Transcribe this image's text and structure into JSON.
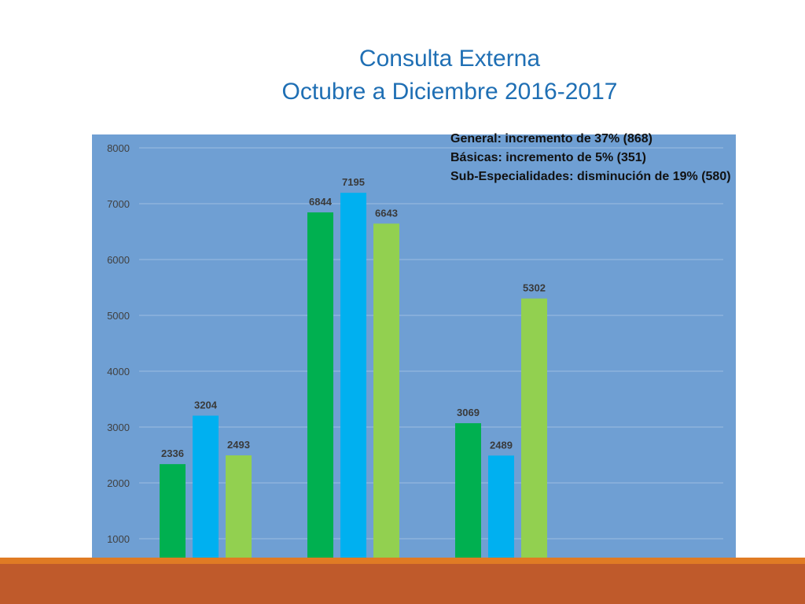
{
  "chart_data": {
    "type": "bar",
    "title_lines": [
      "Consulta Externa",
      "Octubre a Diciembre 2016-2017"
    ],
    "categories": [
      "",
      "",
      ""
    ],
    "series": [
      {
        "values": [
          2336,
          6844,
          3069
        ],
        "color": "#00b050"
      },
      {
        "values": [
          3204,
          7195,
          2489
        ],
        "color": "#00b0f0"
      },
      {
        "values": [
          2493,
          6643,
          5302
        ],
        "color": "#92d050"
      }
    ],
    "ylim": [
      600,
      8200
    ],
    "yticks": [
      1000,
      2000,
      3000,
      4000,
      5000,
      6000,
      7000,
      8000
    ],
    "grid": true,
    "annotations": [
      "General: incremento de 37% (868)",
      "Básicas: incremento de 5% (351)",
      "Sub-Especialidades: disminución de 19% (580)"
    ],
    "background": "#6f9fd3"
  }
}
